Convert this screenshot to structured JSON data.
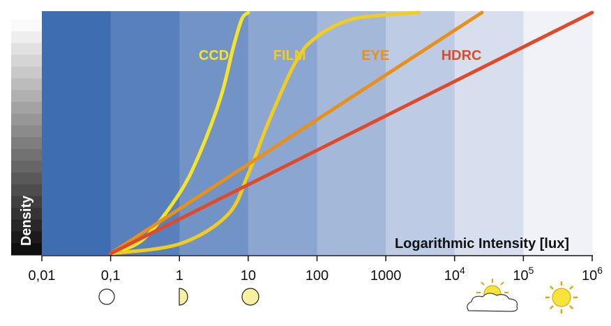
{
  "chart_data": {
    "type": "line",
    "xlabel": "Logarithmic Intensity [lux]",
    "ylabel": "Density",
    "x_scale": "log",
    "xlim": [
      0.01,
      1000000
    ],
    "ylim": [
      0,
      1
    ],
    "grid": false,
    "x_ticks": [
      {
        "value": 0.01,
        "label": "0,01",
        "sup": ""
      },
      {
        "value": 0.1,
        "label": "0,1",
        "sup": ""
      },
      {
        "value": 1,
        "label": "1",
        "sup": ""
      },
      {
        "value": 10,
        "label": "10",
        "sup": ""
      },
      {
        "value": 100,
        "label": "100",
        "sup": ""
      },
      {
        "value": 1000,
        "label": "1000",
        "sup": ""
      },
      {
        "value": 10000,
        "label": "10",
        "sup": "4"
      },
      {
        "value": 100000,
        "label": "10",
        "sup": "5"
      },
      {
        "value": 1000000,
        "label": "10",
        "sup": "6"
      }
    ],
    "series": [
      {
        "name": "CCD",
        "color": "#f5e42c",
        "x": [
          0.1,
          0.3,
          1,
          2,
          4,
          6,
          8,
          10
        ],
        "y": [
          0.0,
          0.06,
          0.25,
          0.42,
          0.65,
          0.85,
          0.97,
          1.0
        ]
      },
      {
        "name": "FILM",
        "color": "#f2cd1e",
        "x": [
          0.1,
          1,
          5,
          10,
          20,
          50,
          100,
          300,
          1000,
          3000
        ],
        "y": [
          0.0,
          0.04,
          0.16,
          0.33,
          0.55,
          0.8,
          0.9,
          0.97,
          0.99,
          1.0
        ]
      },
      {
        "name": "EYE",
        "color": "#e8901c",
        "x": [
          0.1,
          25000
        ],
        "y": [
          0.0,
          1.0
        ]
      },
      {
        "name": "HDRC",
        "color": "#df4a2a",
        "x": [
          0.1,
          1000000
        ],
        "y": [
          0.0,
          1.0
        ]
      }
    ],
    "colors": {
      "band_darkest": "#3e6db2",
      "band_lightest": "#f1f1f8",
      "ccd": "#f5e42c",
      "film": "#f2cd1e",
      "eye": "#e8901c",
      "hdrc": "#df4a2a"
    },
    "icons": [
      "new-moon-icon",
      "half-moon-icon",
      "full-moon-icon",
      "sun-behind-cloud-icon",
      "sun-icon"
    ]
  }
}
